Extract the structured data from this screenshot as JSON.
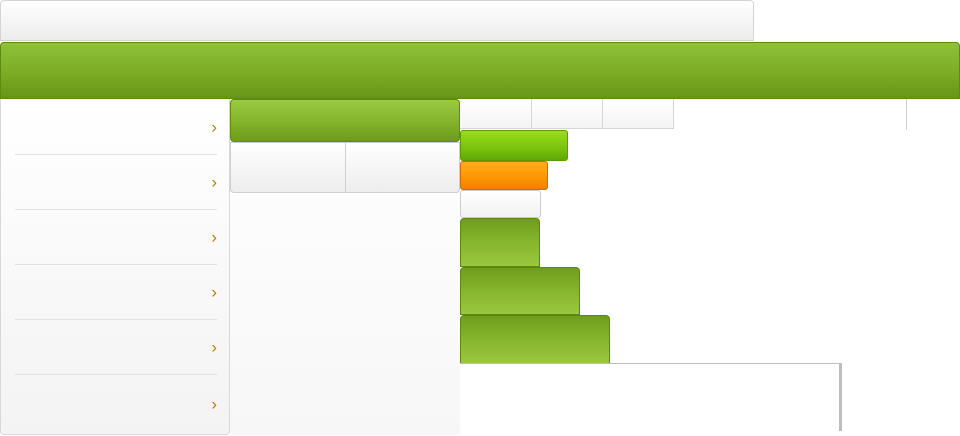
{
  "topbar": {
    "title": ""
  },
  "header": {
    "title": ""
  },
  "sidebar": {
    "items": [
      {
        "label": "",
        "icon": "chevron-right-icon"
      },
      {
        "label": "",
        "icon": "chevron-right-icon"
      },
      {
        "label": "",
        "icon": "chevron-right-icon"
      },
      {
        "label": "",
        "icon": "chevron-right-icon"
      },
      {
        "label": "",
        "icon": "chevron-right-icon"
      },
      {
        "label": "",
        "icon": "chevron-right-icon"
      }
    ],
    "chevron_glyph": "›",
    "chevron_color": "#c07a00"
  },
  "mid_panel": {
    "header_label": "",
    "tabs": [
      {
        "label": ""
      },
      {
        "label": ""
      }
    ]
  },
  "tabstrip": {
    "tabs": [
      {
        "label": ""
      },
      {
        "label": ""
      },
      {
        "label": ""
      }
    ]
  },
  "buttons": {
    "lime": {
      "label": "",
      "color": "#79c20e"
    },
    "orange": {
      "label": "",
      "color": "#ff9400"
    },
    "white": {
      "label": ""
    },
    "green_small": {
      "label": "",
      "color": "#86b52e"
    },
    "green_medium": {
      "label": "",
      "color": "#86b52e"
    },
    "green_large": {
      "label": "",
      "color": "#86b52e"
    }
  },
  "colors": {
    "header_green": "#7cab26",
    "border_gray": "#d4d4d4"
  }
}
